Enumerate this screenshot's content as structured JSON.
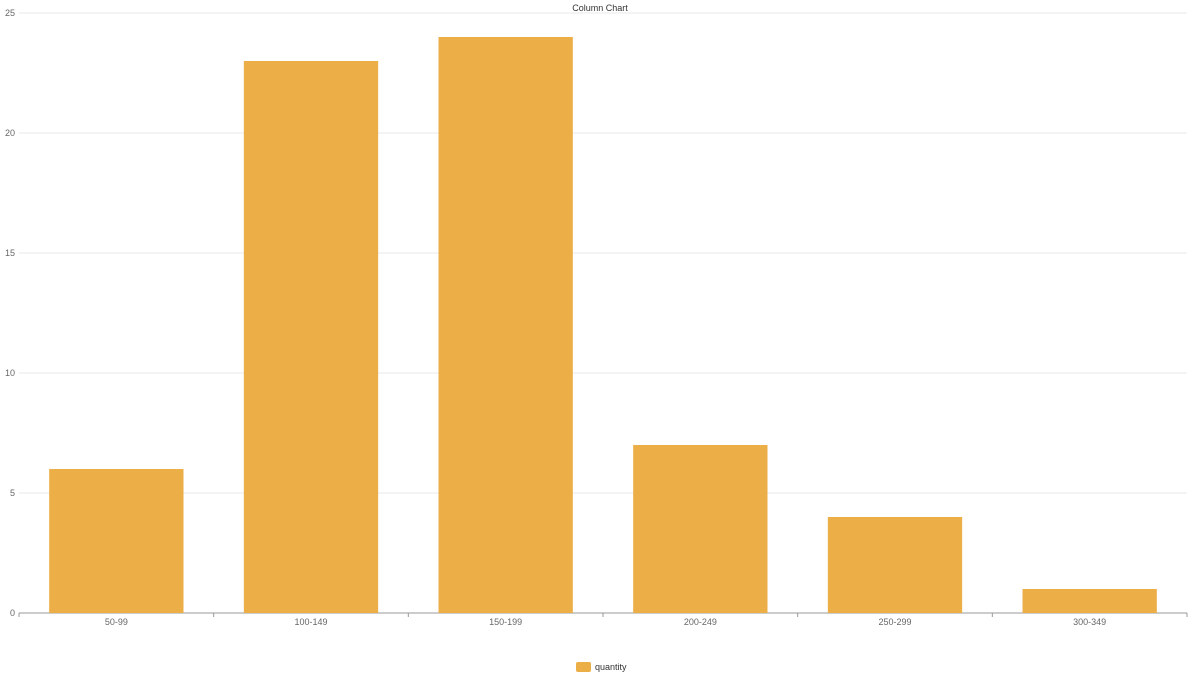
{
  "chart_data": {
    "type": "bar",
    "title": "Column Chart",
    "categories": [
      "50-99",
      "100-149",
      "150-199",
      "200-249",
      "250-299",
      "300-349"
    ],
    "series": [
      {
        "name": "quantity",
        "values": [
          6,
          23,
          24,
          7,
          4,
          1
        ],
        "color": "#ecae47"
      }
    ],
    "ylim": [
      0,
      25
    ],
    "yticks": [
      0,
      5,
      10,
      15,
      20,
      25
    ],
    "grid": true,
    "legend_position": "bottom-center"
  },
  "colors": {
    "bar": "#ecae47",
    "grid": "#e9e9e9",
    "axis": "#999999",
    "text": "#333333"
  }
}
